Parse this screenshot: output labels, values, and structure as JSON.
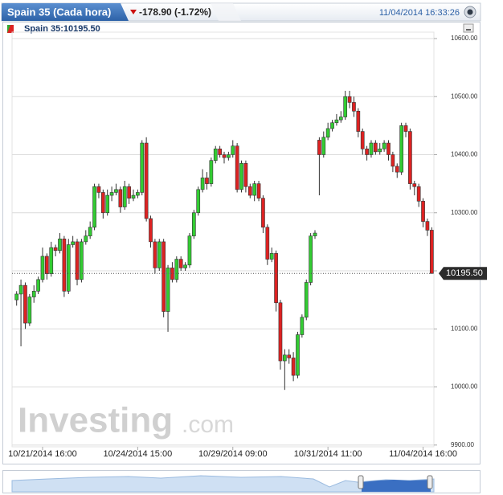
{
  "chart_data": {
    "type": "candlestick",
    "title": "Spain 35 (Cada hora)",
    "change": "-178.90 (-1.72%)",
    "timestamp": "11/04/2014 16:33:26",
    "legend_label": "Spain 35:10195.50",
    "watermark": "Investing",
    "watermark_suffix": ".com",
    "up_color": "#33cc33",
    "down_color": "#dd2222",
    "grid": true,
    "ylim": [
      9897,
      10611
    ],
    "yticks": [
      {
        "value": 9900,
        "label": "9900.00"
      },
      {
        "value": 10000,
        "label": "10000.00"
      },
      {
        "value": 10100,
        "label": "10100.00"
      },
      {
        "value": 10200,
        "label": "10200.00"
      },
      {
        "value": 10300,
        "label": "10300.00"
      },
      {
        "value": 10400,
        "label": "10400.00"
      },
      {
        "value": 10500,
        "label": "10500.00"
      },
      {
        "value": 10600,
        "label": "10600.00"
      }
    ],
    "last_price": {
      "value": 10195.5,
      "label": "10195.50"
    },
    "categories": [
      null,
      null,
      null,
      null,
      null,
      null,
      "10/21/2014 16:00",
      null,
      null,
      null,
      null,
      null,
      null,
      null,
      null,
      null,
      null,
      null,
      null,
      null,
      null,
      null,
      null,
      null,
      null,
      null,
      null,
      null,
      "10/24/2014 15:00",
      null,
      null,
      null,
      null,
      null,
      null,
      null,
      null,
      null,
      null,
      null,
      null,
      null,
      null,
      null,
      null,
      null,
      null,
      null,
      null,
      null,
      "10/29/2014 09:00",
      null,
      null,
      null,
      null,
      null,
      null,
      null,
      null,
      null,
      null,
      null,
      null,
      null,
      null,
      null,
      null,
      null,
      null,
      null,
      null,
      null,
      "10/31/2014 11:00",
      null,
      null,
      null,
      null,
      null,
      null,
      null,
      null,
      null,
      null,
      null,
      null,
      null,
      null,
      null,
      null,
      null,
      null,
      null,
      null,
      null,
      "11/04/2014 16:00",
      null,
      null
    ],
    "series": [
      {
        "name": "Spain 35",
        "open": [
          10150,
          10160,
          10175,
          10110,
          10155,
          10165,
          10185,
          10225,
          10195,
          10240,
          10235,
          10255,
          10165,
          10245,
          10250,
          10185,
          10250,
          10260,
          10275,
          10345,
          10335,
          10300,
          10330,
          10335,
          10340,
          10310,
          10345,
          10325,
          10330,
          10335,
          10420,
          10290,
          10250,
          10205,
          10250,
          10130,
          10205,
          10185,
          10220,
          10205,
          10210,
          10260,
          10300,
          10340,
          10360,
          10350,
          10390,
          10410,
          10400,
          10395,
          10400,
          10415,
          10340,
          10385,
          10345,
          10330,
          10350,
          10325,
          10275,
          10220,
          10230,
          10145,
          10045,
          10055,
          10050,
          10020,
          10090,
          10120,
          10180,
          10260,
          10425,
          10400,
          10430,
          10445,
          10455,
          10460,
          10465,
          10500,
          10490,
          10475,
          10440,
          10410,
          10400,
          10420,
          10405,
          10410,
          10420,
          10400,
          10380,
          10370,
          10450,
          10440,
          10350,
          10345,
          10320,
          10285,
          10270
        ],
        "high": [
          10165,
          10185,
          10180,
          10160,
          10175,
          10190,
          10240,
          10230,
          10250,
          10245,
          10265,
          10260,
          10255,
          10260,
          10255,
          10255,
          10270,
          10285,
          10350,
          10350,
          10340,
          10340,
          10345,
          10350,
          10345,
          10355,
          10350,
          10340,
          10340,
          10425,
          10430,
          10295,
          10255,
          10255,
          10255,
          10210,
          10215,
          10225,
          10225,
          10215,
          10265,
          10305,
          10345,
          10375,
          10370,
          10395,
          10415,
          10415,
          10405,
          10405,
          10425,
          10420,
          10390,
          10390,
          10350,
          10355,
          10355,
          10330,
          10280,
          10240,
          10235,
          10150,
          10065,
          10065,
          10060,
          10095,
          10125,
          10185,
          10265,
          10270,
          10430,
          10440,
          10455,
          10460,
          10470,
          10475,
          10510,
          10510,
          10500,
          10480,
          10445,
          10415,
          10425,
          10425,
          10420,
          10425,
          10425,
          10405,
          10385,
          10455,
          10455,
          10445,
          10355,
          10350,
          10325,
          10290,
          10275
        ],
        "low": [
          10140,
          10070,
          10100,
          10105,
          10145,
          10160,
          10180,
          10185,
          10190,
          10225,
          10230,
          10155,
          10160,
          10240,
          10175,
          10180,
          10245,
          10255,
          10270,
          10325,
          10290,
          10295,
          10320,
          10330,
          10300,
          10305,
          10315,
          10320,
          10325,
          10330,
          10285,
          10240,
          10195,
          10200,
          10120,
          10095,
          10180,
          10180,
          10200,
          10200,
          10205,
          10255,
          10295,
          10335,
          10340,
          10345,
          10385,
          10395,
          10385,
          10390,
          10395,
          10335,
          10335,
          10335,
          10325,
          10320,
          10320,
          10265,
          10210,
          10215,
          10130,
          10030,
          9995,
          10040,
          10010,
          10015,
          10085,
          10115,
          10175,
          10255,
          10330,
          10395,
          10425,
          10440,
          10450,
          10455,
          10460,
          10480,
          10465,
          10430,
          10400,
          10390,
          10395,
          10400,
          10400,
          10405,
          10390,
          10370,
          10360,
          10365,
          10430,
          10340,
          10330,
          10310,
          10275,
          10260,
          10195.5
        ],
        "close": [
          10160,
          10175,
          10110,
          10155,
          10165,
          10185,
          10225,
          10195,
          10240,
          10235,
          10255,
          10165,
          10245,
          10250,
          10185,
          10250,
          10260,
          10275,
          10345,
          10335,
          10300,
          10330,
          10335,
          10340,
          10310,
          10345,
          10325,
          10330,
          10335,
          10420,
          10290,
          10250,
          10205,
          10250,
          10130,
          10205,
          10185,
          10220,
          10205,
          10210,
          10260,
          10300,
          10340,
          10360,
          10350,
          10390,
          10410,
          10400,
          10395,
          10400,
          10415,
          10340,
          10385,
          10345,
          10330,
          10350,
          10325,
          10275,
          10220,
          10230,
          10145,
          10045,
          10055,
          10050,
          10020,
          10090,
          10120,
          10180,
          10260,
          10265,
          10400,
          10430,
          10445,
          10455,
          10460,
          10465,
          10500,
          10490,
          10475,
          10440,
          10410,
          10400,
          10420,
          10405,
          10410,
          10420,
          10400,
          10380,
          10370,
          10450,
          10440,
          10350,
          10345,
          10320,
          10285,
          10270,
          10195.5
        ]
      }
    ]
  }
}
